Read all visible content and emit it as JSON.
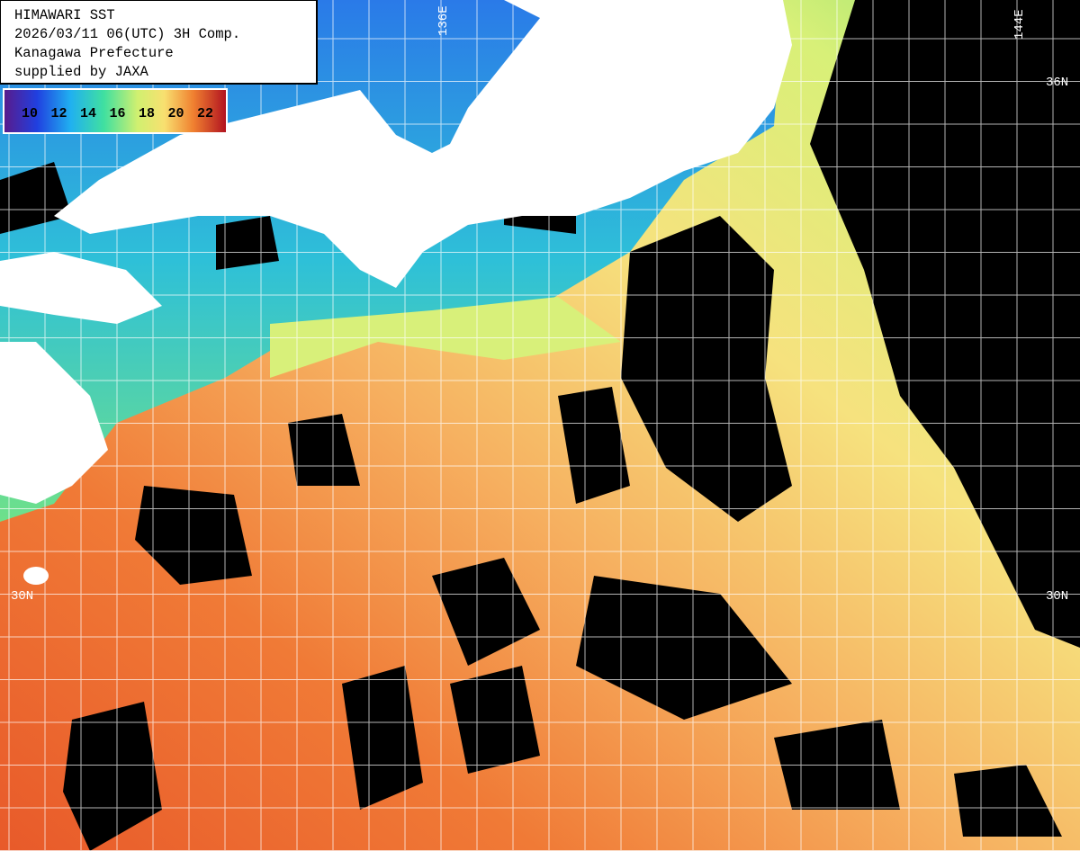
{
  "header": {
    "lines": [
      "HIMAWARI SST",
      "2026/03/11 06(UTC) 3H Comp.",
      "Kanagawa Prefecture",
      "supplied by JAXA"
    ]
  },
  "colorbar": {
    "labels": [
      10,
      12,
      14,
      16,
      18,
      20,
      22
    ]
  },
  "grid_labels": {
    "lon": [
      "136E",
      "144E"
    ],
    "lat": [
      "36N",
      "30N"
    ]
  }
}
